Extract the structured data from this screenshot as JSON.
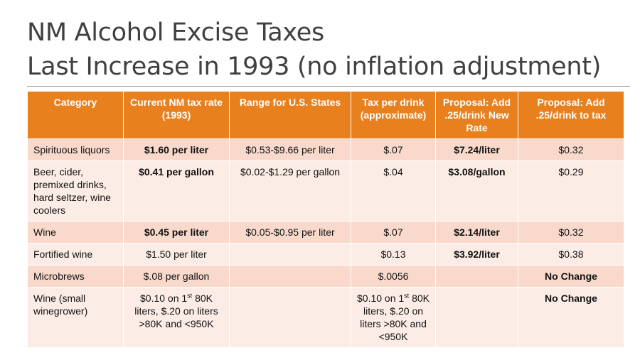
{
  "title": [
    "NM Alcohol Excise Taxes",
    "Last Increase in 1993 (no inflation adjustment)"
  ],
  "table": {
    "header": [
      "Category",
      "Current NM tax rate (1993)",
      "Range for U.S. States",
      "Tax per drink (approximate)",
      "Proposal: Add .25/drink New Rate",
      "Proposal: Add .25/drink to tax"
    ],
    "rows": [
      [
        "Spirituous liquors",
        "$1.60 per liter",
        "$0.53-$9.66 per liter",
        "$.07",
        "$7.24/liter",
        "$0.32"
      ],
      [
        "Beer, cider, premixed drinks, hard seltzer, wine coolers",
        "$0.41 per gallon",
        "$0.02-$1.29 per gallon",
        "$.04",
        "$3.08/gallon",
        "$0.29"
      ],
      [
        "Wine",
        "$0.45 per liter",
        "$0.05-$0.95 per liter",
        "$.07",
        "$2.14/liter",
        "$0.32"
      ],
      [
        "Fortified wine",
        "$1.50 per liter",
        null,
        "$0.13",
        "$3.92/liter",
        "$0.38"
      ],
      [
        "Microbrews",
        "$.08 per gallon",
        null,
        "$.0056",
        null,
        "No Change"
      ],
      [
        "Wine (small winegrower)",
        {
          "before": "$0.10 on 1",
          "sup": "st",
          "after": " 80K liters, $.20 on liters >80K and <950K"
        },
        null,
        {
          "before": "$0.10 on 1",
          "sup": "st",
          "after": " 80K liters, $.20 on liters >80K and <950K"
        },
        null,
        "No Change"
      ]
    ]
  }
}
